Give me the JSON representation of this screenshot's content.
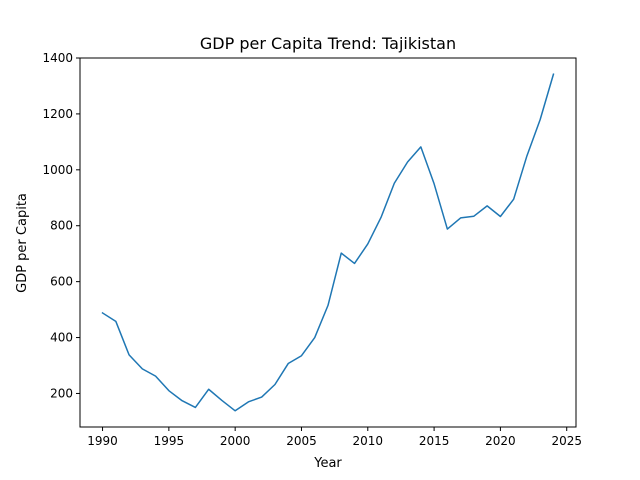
{
  "chart_data": {
    "type": "line",
    "title": "GDP per Capita Trend: Tajikistan",
    "xlabel": "Year",
    "ylabel": "GDP per Capita",
    "xlim": [
      1988.3,
      2025.7
    ],
    "ylim": [
      80,
      1400
    ],
    "xticks": [
      1990,
      1995,
      2000,
      2005,
      2010,
      2015,
      2020,
      2025
    ],
    "yticks": [
      200,
      400,
      600,
      800,
      1000,
      1200,
      1400
    ],
    "grid": false,
    "line_color": "#1f77b4",
    "series": [
      {
        "x": [
          1990,
          1991,
          1992,
          1993,
          1994,
          1995,
          1996,
          1997,
          1998,
          1999,
          2000,
          2001,
          2002,
          2003,
          2004,
          2005,
          2006,
          2007,
          2008,
          2009,
          2010,
          2011,
          2012,
          2013,
          2014,
          2015,
          2016,
          2017,
          2018,
          2019,
          2020,
          2021,
          2022,
          2023,
          2024
        ],
        "values": [
          488,
          458,
          338,
          288,
          262,
          210,
          174,
          150,
          215,
          175,
          138,
          170,
          187,
          232,
          307,
          335,
          400,
          515,
          702,
          665,
          735,
          830,
          952,
          1028,
          1082,
          950,
          788,
          828,
          834,
          871,
          833,
          895,
          1050,
          1180,
          1342
        ]
      }
    ]
  }
}
